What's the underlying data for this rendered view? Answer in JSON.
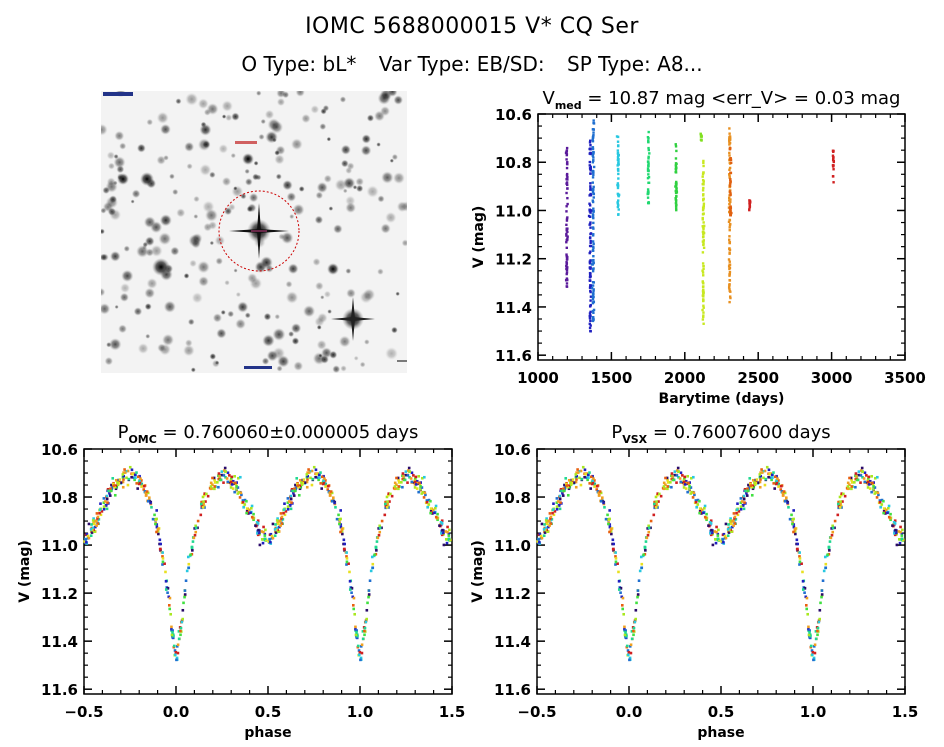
{
  "header": {
    "title": "IOMC 5688000015    V* CQ Ser",
    "otype": "O Type: bL*",
    "vartype": "Var Type: EB/SD:",
    "sptype": "SP Type: A8..."
  },
  "sky_image": {
    "description": "Greyscale finder chart of star field centered on target with red dashed circle",
    "marker_color": "#cc0000"
  },
  "chart_data": [
    {
      "id": "lightcurve-time",
      "type": "scatter",
      "title_main": "V",
      "title_sub": "med",
      "title_rest": " = 10.87 mag <err_V> = 0.03 mag",
      "xlabel": "Barytime (days)",
      "ylabel": "V (mag)",
      "xlim": [
        1000,
        3500
      ],
      "ylim": [
        11.62,
        10.6
      ],
      "xticks": [
        1000,
        1500,
        2000,
        2500,
        3000,
        3500
      ],
      "yticks": [
        10.6,
        10.8,
        11.0,
        11.2,
        11.4,
        11.6
      ],
      "ytick_labels": [
        "10.6",
        "10.8",
        "11.0",
        "11.2",
        "11.4",
        "11.6"
      ],
      "grid": false,
      "epochs": [
        {
          "t": 1195,
          "vmin": 10.74,
          "vmax": 11.32,
          "color": "#5a1a9a"
        },
        {
          "t": 1355,
          "vmin": 10.71,
          "vmax": 11.5,
          "color": "#2020c0"
        },
        {
          "t": 1375,
          "vmin": 10.62,
          "vmax": 11.47,
          "color": "#1f6fd0"
        },
        {
          "t": 1545,
          "vmin": 10.68,
          "vmax": 11.04,
          "color": "#28c8e0"
        },
        {
          "t": 1750,
          "vmin": 10.67,
          "vmax": 10.97,
          "color": "#20d870"
        },
        {
          "t": 1940,
          "vmin": 10.71,
          "vmax": 11.02,
          "color": "#30d040"
        },
        {
          "t": 2110,
          "vmin": 10.68,
          "vmax": 10.71,
          "color": "#80e020"
        },
        {
          "t": 2125,
          "vmin": 10.79,
          "vmax": 11.48,
          "color": "#c8e820"
        },
        {
          "t": 2305,
          "vmin": 10.65,
          "vmax": 11.38,
          "color": "#e89020"
        },
        {
          "t": 2310,
          "vmin": 10.74,
          "vmax": 11.02,
          "color": "#e06010"
        },
        {
          "t": 2440,
          "vmin": 10.9,
          "vmax": 11.0,
          "color": "#d02020"
        },
        {
          "t": 3010,
          "vmin": 10.75,
          "vmax": 10.89,
          "color": "#d02020"
        }
      ]
    },
    {
      "id": "phase-omc",
      "type": "scatter",
      "title_main": "P",
      "title_sub": "OMC",
      "title_rest": " = 0.760060±0.000005 days",
      "xlabel": "phase",
      "ylabel": "V (mag)",
      "xlim": [
        -0.5,
        1.5
      ],
      "ylim": [
        11.62,
        10.6
      ],
      "xticks": [
        -0.5,
        0.0,
        0.5,
        1.0,
        1.5
      ],
      "xtick_labels": [
        "−0.5",
        "0.0",
        "0.5",
        "1.0",
        "1.5"
      ],
      "yticks": [
        10.6,
        10.8,
        11.0,
        11.2,
        11.4,
        11.6
      ],
      "ytick_labels": [
        "10.6",
        "10.8",
        "11.0",
        "11.2",
        "11.4",
        "11.6"
      ],
      "grid": false,
      "period_days": 0.76006,
      "period_err_days": 5e-06
    },
    {
      "id": "phase-vsx",
      "type": "scatter",
      "title_main": "P",
      "title_sub": "VSX",
      "title_rest": " = 0.76007600 days",
      "xlabel": "phase",
      "ylabel": "V (mag)",
      "xlim": [
        -0.5,
        1.5
      ],
      "ylim": [
        11.62,
        10.6
      ],
      "xticks": [
        -0.5,
        0.0,
        0.5,
        1.0,
        1.5
      ],
      "xtick_labels": [
        "−0.5",
        "0.0",
        "0.5",
        "1.0",
        "1.5"
      ],
      "yticks": [
        10.6,
        10.8,
        11.0,
        11.2,
        11.4,
        11.6
      ],
      "ytick_labels": [
        "10.6",
        "10.8",
        "11.0",
        "11.2",
        "11.4",
        "11.6"
      ],
      "grid": false,
      "period_days": 0.760076
    }
  ],
  "lightcurve_model": {
    "description": "Folded V light curve (phase, mag) key points",
    "phase": [
      0.0,
      0.03,
      0.06,
      0.1,
      0.15,
      0.2,
      0.25,
      0.3,
      0.35,
      0.4,
      0.45,
      0.5,
      0.55,
      0.6,
      0.65,
      0.7,
      0.75,
      0.8,
      0.85,
      0.9,
      0.94,
      0.97,
      1.0
    ],
    "mag": [
      11.48,
      11.32,
      11.12,
      10.95,
      10.82,
      10.74,
      10.71,
      10.73,
      10.78,
      10.86,
      10.94,
      10.98,
      10.93,
      10.84,
      10.77,
      10.72,
      10.7,
      10.73,
      10.8,
      10.93,
      11.1,
      11.3,
      11.48
    ]
  },
  "colormap": [
    "#2a0a6a",
    "#2020c0",
    "#1f6fd0",
    "#28c8e0",
    "#20d890",
    "#40e040",
    "#a8e820",
    "#e8e020",
    "#f0a020",
    "#e86010",
    "#d02020"
  ]
}
